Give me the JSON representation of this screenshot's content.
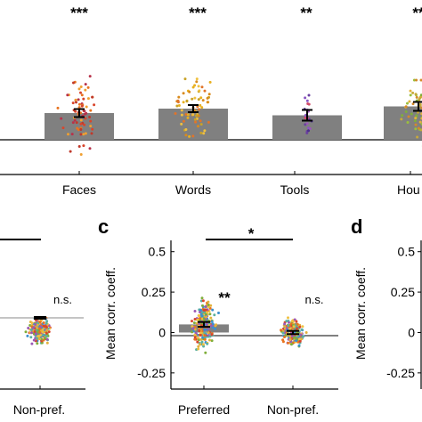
{
  "top_panel": {
    "categories": [
      "Faces",
      "Words",
      "Tools",
      "Hou"
    ],
    "significance": [
      "***",
      "***",
      "**",
      "**"
    ],
    "bar_values": [
      0.6,
      0.7,
      0.55,
      0.75
    ],
    "error": [
      0.09,
      0.08,
      0.12,
      0.1
    ],
    "point_colors": [
      [
        "#d9452b",
        "#e8731f",
        "#c0392b",
        "#f0a030",
        "#b8324a"
      ],
      [
        "#e8b020",
        "#f0c040",
        "#d98a1c",
        "#c9a227",
        "#e0742a"
      ],
      [
        "#6a3fa0",
        "#8a56c2",
        "#4b2f8a",
        "#d04a6a",
        "#9b59b6"
      ],
      [
        "#c8a93a",
        "#9bbf3c",
        "#e3b23c",
        "#7fae3a",
        "#d48a2a"
      ]
    ]
  },
  "panel_b": {
    "group": "Non-pref.",
    "significance": "n.s.",
    "mean": 0.01
  },
  "panel_c": {
    "letter": "c",
    "ylabel": "Mean corr. coeff.",
    "yticks": [
      "0.5",
      "0.25",
      "0",
      "-0.25"
    ],
    "categories": [
      "Preferred",
      "Non-pref."
    ],
    "bar_values": [
      0.05,
      0.0
    ],
    "error": [
      0.015,
      0.01
    ],
    "bar_significance": [
      "**",
      "n.s."
    ],
    "bracket_significance": "*"
  },
  "panel_d": {
    "letter": "d",
    "ylabel": "Mean corr. coeff.",
    "yticks": [
      "0.5",
      "0.25",
      "0",
      "-0.25"
    ]
  },
  "chart_data": [
    {
      "type": "bar",
      "categories": [
        "Faces",
        "Words",
        "Tools",
        "Hou"
      ],
      "values": [
        0.6,
        0.7,
        0.55,
        0.75
      ],
      "title": "",
      "xlabel": "",
      "ylabel": ""
    },
    {
      "type": "bar",
      "categories": [
        "Preferred",
        "Non-pref."
      ],
      "values": [
        0.05,
        0.0
      ],
      "ylabel": "Mean corr. coeff.",
      "ylim": [
        -0.35,
        0.57
      ]
    }
  ],
  "colors": {
    "bar": "#808080",
    "axis": "#000000",
    "error": "#000000",
    "scatter": [
      "#e8731f",
      "#f0c040",
      "#7fae3a",
      "#3a8fd0",
      "#d9452b",
      "#9b59b6",
      "#e3b23c",
      "#5bb0a0"
    ]
  }
}
